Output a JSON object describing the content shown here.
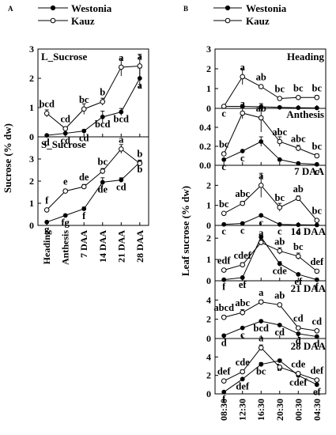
{
  "panel_labels": {
    "a": "A",
    "b": "B"
  },
  "legend": [
    {
      "name": "Westonia",
      "marker": "filled"
    },
    {
      "name": "Kauz",
      "marker": "open"
    }
  ],
  "colors": {
    "ink": "#000000",
    "open_fill": "#ffffff"
  },
  "chart_data": [
    {
      "id": "A_top",
      "type": "line",
      "title": "L_Sucrose",
      "categories": [
        "Heading",
        "Anthesis",
        "7 DAA",
        "14 DAA",
        "21 DAA",
        "28 DAA"
      ],
      "ylim": [
        0,
        3
      ],
      "yticks": [
        0,
        1,
        2,
        3
      ],
      "grid": false,
      "series": [
        {
          "name": "Westonia",
          "values": [
            0.05,
            0.12,
            0.2,
            0.68,
            0.85,
            2.0
          ],
          "err": [
            0.03,
            0.03,
            0.05,
            0.2,
            0.12,
            0.35
          ],
          "labels": [
            "d",
            "cd",
            "cd",
            "bcd",
            "bcd",
            "a"
          ]
        },
        {
          "name": "Kauz",
          "values": [
            0.8,
            0.28,
            0.95,
            1.2,
            2.38,
            2.42
          ],
          "err": [
            0.12,
            0.05,
            0.18,
            0.12,
            0.3,
            0.4
          ],
          "labels": [
            "bcd",
            "cd",
            "bc",
            "b",
            "a",
            "a"
          ]
        }
      ]
    },
    {
      "id": "A_bottom",
      "type": "line",
      "title": "S_Sucrose",
      "categories": [
        "Heading",
        "Anthesis",
        "7 DAA",
        "14 DAA",
        "21 DAA",
        "28 DAA"
      ],
      "ylim": [
        0,
        4
      ],
      "yticks": [
        0,
        1,
        2,
        3
      ],
      "grid": false,
      "ylabel": "Sucrose (% dw)",
      "series": [
        {
          "name": "Westonia",
          "values": [
            0.15,
            0.45,
            0.75,
            1.95,
            2.05,
            2.85
          ],
          "err": [
            0.03,
            0.05,
            0.08,
            0.2,
            0.1,
            0.1
          ],
          "labels": [
            "g",
            "fg",
            "f",
            "de",
            "cd",
            "b"
          ]
        },
        {
          "name": "Kauz",
          "values": [
            0.7,
            1.55,
            1.75,
            2.45,
            3.45,
            2.8
          ],
          "err": [
            0.05,
            0.08,
            0.1,
            0.12,
            0.2,
            0.1
          ],
          "labels": [
            "f",
            "e",
            "de",
            "bc",
            "a",
            "b"
          ]
        }
      ]
    },
    {
      "id": "B_heading",
      "type": "line",
      "title": "Heading",
      "categories": [
        "08:30",
        "12:30",
        "16:30",
        "20:30",
        "00:30",
        "04:30"
      ],
      "ylim": [
        0,
        3
      ],
      "yticks": [
        0,
        1,
        2,
        3
      ],
      "grid": false,
      "series": [
        {
          "name": "Westonia",
          "values": [
            0.1,
            0.1,
            0.08,
            0.05,
            0.03,
            0.02
          ],
          "err": [
            0,
            0,
            0,
            0,
            0,
            0
          ],
          "labels": [
            "c",
            "",
            "",
            "",
            "",
            ""
          ]
        },
        {
          "name": "Kauz",
          "values": [
            0.1,
            1.6,
            1.1,
            0.5,
            0.55,
            0.55
          ],
          "err": [
            0.02,
            0.4,
            0.05,
            0.05,
            0.05,
            0.1
          ],
          "labels": [
            "",
            "a",
            "ab",
            "bc",
            "bc",
            "bc"
          ]
        }
      ]
    },
    {
      "id": "B_anthesis",
      "type": "line",
      "title": "Anthesis",
      "categories": [
        "08:30",
        "12:30",
        "16:30",
        "20:30",
        "00:30",
        "04:30"
      ],
      "ylim": [
        0,
        0.6
      ],
      "yticks": [
        0.0,
        0.2,
        0.4
      ],
      "grid": false,
      "series": [
        {
          "name": "Westonia",
          "values": [
            0.06,
            0.15,
            0.25,
            0.06,
            0.02,
            0.01
          ],
          "err": [
            0,
            0,
            0.05,
            0,
            0,
            0
          ],
          "labels": [
            "c",
            "c",
            "",
            "",
            "",
            "c"
          ]
        },
        {
          "name": "Kauz",
          "values": [
            0.12,
            0.55,
            0.5,
            0.25,
            0.18,
            0.1
          ],
          "err": [
            0.02,
            0.06,
            0.15,
            0.05,
            0.03,
            0.02
          ],
          "labels": [
            "bc",
            "a",
            "ab",
            "abc",
            "abc",
            "bc"
          ]
        }
      ]
    },
    {
      "id": "B_7daa",
      "type": "line",
      "title": "7 DAA",
      "categories": [
        "08:30",
        "12:30",
        "16:30",
        "20:30",
        "00:30",
        "04:30"
      ],
      "ylim": [
        0,
        3
      ],
      "yticks": [
        0,
        1,
        2
      ],
      "grid": false,
      "series": [
        {
          "name": "Westonia",
          "values": [
            0.05,
            0.1,
            0.5,
            0.05,
            0.03,
            0.02
          ],
          "err": [
            0,
            0,
            0,
            0,
            0,
            0
          ],
          "labels": [
            "c",
            "c",
            "c",
            "c",
            "c",
            ""
          ]
        },
        {
          "name": "Kauz",
          "values": [
            0.6,
            1.1,
            2.0,
            0.9,
            1.35,
            0.25
          ],
          "err": [
            0.05,
            0.1,
            0.6,
            0.2,
            0.12,
            0.05
          ],
          "labels": [
            "bc",
            "abc",
            "a",
            "bc",
            "ab",
            "bc"
          ]
        }
      ]
    },
    {
      "id": "B_14daa",
      "type": "line",
      "title": "14 DAA",
      "categories": [
        "08:30",
        "12:30",
        "16:30",
        "20:30",
        "00:30",
        "04:30"
      ],
      "ylim": [
        0,
        2.6
      ],
      "yticks": [
        0,
        1,
        2
      ],
      "grid": false,
      "series": [
        {
          "name": "Westonia",
          "values": [
            0.05,
            0.15,
            2.05,
            0.8,
            0.3,
            0.05
          ],
          "err": [
            0,
            0,
            0.1,
            0.1,
            0.05,
            0
          ],
          "labels": [
            "f",
            "ef",
            "",
            "cde",
            "ef",
            "f"
          ]
        },
        {
          "name": "Kauz",
          "values": [
            0.5,
            0.75,
            1.8,
            1.4,
            1.15,
            0.45
          ],
          "err": [
            0.05,
            0.1,
            0.12,
            0.15,
            0.15,
            0.05
          ],
          "labels": [
            "edf",
            "cdef",
            "a",
            "ab",
            "bc",
            "def"
          ]
        }
      ]
    },
    {
      "id": "B_21daa",
      "type": "line",
      "title": "21 DAA",
      "categories": [
        "08:30",
        "12:30",
        "16:30",
        "20:30",
        "00:30",
        "04:30"
      ],
      "ylim": [
        0,
        6
      ],
      "yticks": [
        0,
        2,
        4
      ],
      "grid": false,
      "ylabel": "Leaf sucrose (% dw)",
      "series": [
        {
          "name": "Westonia",
          "values": [
            0.3,
            1.1,
            1.8,
            1.4,
            0.5,
            0.2
          ],
          "err": [
            0,
            0.05,
            0.1,
            0.05,
            0.05,
            0
          ],
          "labels": [
            "d",
            "c",
            "bcd",
            "cd",
            "d",
            "d"
          ]
        },
        {
          "name": "Kauz",
          "values": [
            2.2,
            2.7,
            3.8,
            3.5,
            1.1,
            0.8
          ],
          "err": [
            0.2,
            0.3,
            0.2,
            0.15,
            0.1,
            0.05
          ],
          "labels": [
            "abcd",
            "abc",
            "a",
            "ab",
            "cd",
            "cd"
          ]
        }
      ]
    },
    {
      "id": "B_28daa",
      "type": "line",
      "title": "28 DAA",
      "categories": [
        "08:30",
        "12:30",
        "16:30",
        "20:30",
        "00:30",
        "04:30"
      ],
      "ylim": [
        0,
        6
      ],
      "yticks": [
        0,
        2,
        4
      ],
      "grid": false,
      "series": [
        {
          "name": "Westonia",
          "values": [
            0.2,
            1.6,
            3.2,
            3.6,
            2.0,
            1.0
          ],
          "err": [
            0,
            0.1,
            0.2,
            0.15,
            0.1,
            0.05
          ],
          "labels": [
            "f",
            "def",
            "bc",
            "b",
            "cdef",
            "ef"
          ]
        },
        {
          "name": "Kauz",
          "values": [
            1.4,
            2.4,
            5.0,
            2.9,
            2.2,
            1.5
          ],
          "err": [
            0.1,
            0.2,
            0.3,
            0.15,
            0.15,
            0.1
          ],
          "labels": [
            "def",
            "cde",
            "a",
            "",
            "cde",
            "def"
          ]
        }
      ]
    }
  ]
}
